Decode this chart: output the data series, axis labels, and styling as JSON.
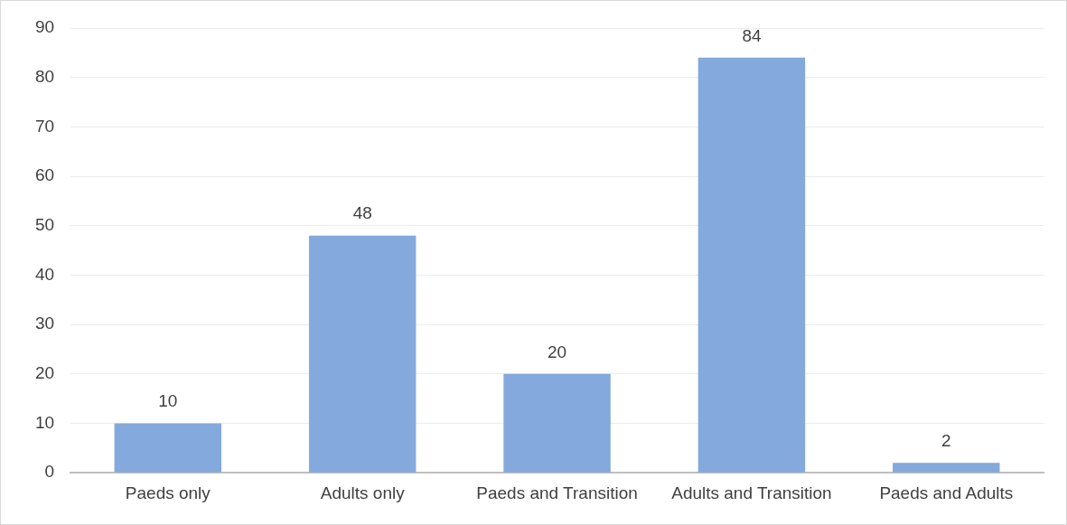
{
  "chart_data": {
    "type": "bar",
    "categories": [
      "Paeds only",
      "Adults only",
      "Paeds and Transition",
      "Adults and Transition",
      "Paeds and Adults"
    ],
    "values": [
      10,
      48,
      20,
      84,
      2
    ],
    "color": "#84a9dc",
    "ylim": [
      0,
      90
    ],
    "yticks": [
      0,
      10,
      20,
      30,
      40,
      50,
      60,
      70,
      80,
      90
    ],
    "grid": "y",
    "data_labels": true,
    "legend": false
  }
}
